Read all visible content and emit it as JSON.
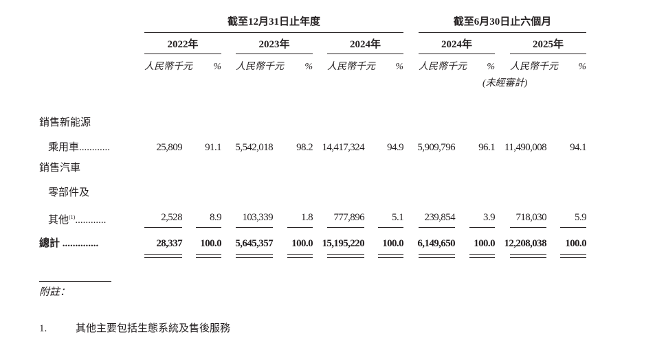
{
  "header": {
    "group_annual": "截至12月31日止年度",
    "group_interim": "截至6月30日止六個月",
    "years": [
      "2022年",
      "2023年",
      "2024年",
      "2024年",
      "2025年"
    ],
    "unit_rmb": "人民幣千元",
    "unit_pct": "%",
    "unaudited": "(未經審計)"
  },
  "rows": [
    {
      "label_lines": [
        "銷售新能源",
        "乘用車............"
      ],
      "values": [
        "25,809",
        "91.1",
        "5,542,018",
        "98.2",
        "14,417,324",
        "94.9",
        "5,909,796",
        "96.1",
        "11,490,008",
        "94.1"
      ]
    },
    {
      "label_lines": [
        "銷售汽車",
        "零部件及",
        "其他"
      ],
      "footnote_mark": "(1)",
      "dots": "............",
      "values": [
        "2,528",
        "8.9",
        "103,339",
        "1.8",
        "777,896",
        "5.1",
        "239,854",
        "3.9",
        "718,030",
        "5.9"
      ]
    }
  ],
  "total": {
    "label": "總計 ..............",
    "values": [
      "28,337",
      "100.0",
      "5,645,357",
      "100.0",
      "15,195,220",
      "100.0",
      "6,149,650",
      "100.0",
      "12,208,038",
      "100.0"
    ]
  },
  "notes": {
    "title": "附註：",
    "items": [
      {
        "number": "1.",
        "text": "其他主要包括生態系統及售後服務"
      }
    ]
  }
}
